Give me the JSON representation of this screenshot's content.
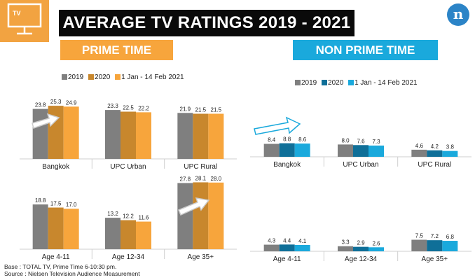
{
  "title": "AVERAGE TV RATINGS 2019 - 2021",
  "tv_icon_label": "TV",
  "logo_text": "n",
  "sections": {
    "prime": "PRIME TIME",
    "nonprime": "NON PRIME TIME"
  },
  "legend": [
    "2019",
    "2020",
    "1 Jan - 14 Feb 2021"
  ],
  "colors": {
    "prime": [
      "#7f7f7f",
      "#c8872d",
      "#f7a53c"
    ],
    "nonprime": [
      "#7f7f7f",
      "#0f6f98",
      "#1aa9dc"
    ],
    "arrow_outline": "#1aa9dc"
  },
  "footnotes": {
    "base": "Base : TOTAL TV, Prime Time 6-10:30 pm.",
    "source": "Source : Nielsen Television Audience Measurement"
  },
  "chart_data": [
    {
      "type": "bar",
      "title": "PRIME TIME",
      "categories": [
        "Bangkok",
        "UPC Urban",
        "UPC Rural"
      ],
      "series": [
        {
          "name": "2019",
          "values": [
            23.8,
            23.3,
            21.9
          ]
        },
        {
          "name": "2020",
          "values": [
            25.3,
            22.5,
            21.5
          ]
        },
        {
          "name": "1 Jan - 14 Feb 2021",
          "values": [
            24.9,
            22.2,
            21.5
          ]
        }
      ]
    },
    {
      "type": "bar",
      "title": "PRIME TIME",
      "categories": [
        "Age 4-11",
        "Age 12-34",
        "Age 35+"
      ],
      "series": [
        {
          "name": "2019",
          "values": [
            18.8,
            13.2,
            27.8
          ]
        },
        {
          "name": "2020",
          "values": [
            17.5,
            12.2,
            28.1
          ]
        },
        {
          "name": "1 Jan - 14 Feb 2021",
          "values": [
            17.0,
            11.6,
            28.0
          ]
        }
      ]
    },
    {
      "type": "bar",
      "title": "NON PRIME TIME",
      "categories": [
        "Bangkok",
        "UPC Urban",
        "UPC Rural"
      ],
      "series": [
        {
          "name": "2019",
          "values": [
            8.4,
            8.0,
            4.6
          ]
        },
        {
          "name": "2020",
          "values": [
            8.8,
            7.6,
            4.2
          ]
        },
        {
          "name": "1 Jan - 14 Feb 2021",
          "values": [
            8.6,
            7.3,
            3.8
          ]
        }
      ]
    },
    {
      "type": "bar",
      "title": "NON PRIME TIME",
      "categories": [
        "Age 4-11",
        "Age 12-34",
        "Age 35+"
      ],
      "series": [
        {
          "name": "2019",
          "values": [
            4.3,
            3.3,
            7.5
          ]
        },
        {
          "name": "2020",
          "values": [
            4.4,
            2.9,
            7.2
          ]
        },
        {
          "name": "1 Jan - 14 Feb 2021",
          "values": [
            4.1,
            2.6,
            6.8
          ]
        }
      ]
    }
  ]
}
